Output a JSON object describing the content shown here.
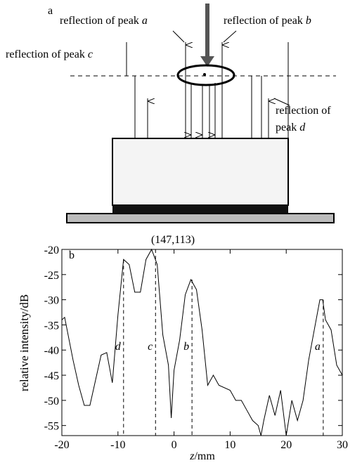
{
  "diagram": {
    "panel_label": "a",
    "labels": {
      "peak_a": {
        "text": "reflection of peak",
        "letter": "a"
      },
      "peak_b": {
        "text": "reflection of peak",
        "letter": "b"
      },
      "peak_c": {
        "text": "reflection of peak",
        "letter": "c"
      },
      "peak_d": {
        "text": "reflection of",
        "text2": "peak",
        "letter": "d"
      }
    }
  },
  "chart_data": {
    "type": "line",
    "panel_label": "b",
    "title": "(147,113)",
    "x_label": "z",
    "x_label_unit": "/mm",
    "y_label": "relative intensity/dB",
    "x": [
      -20,
      -19.5,
      -18,
      -17,
      -16,
      -15,
      -14,
      -13,
      -12,
      -11,
      -10,
      -9,
      -8,
      -7,
      -6,
      -5,
      -4,
      -3,
      -2,
      -1,
      -0.5,
      0,
      1,
      2,
      3,
      4,
      5,
      6,
      7,
      8,
      10,
      11,
      12,
      13,
      14,
      15,
      15.5,
      16,
      17,
      18,
      19,
      20,
      21,
      22,
      23,
      24,
      25,
      26,
      26.5,
      27,
      28,
      29,
      30
    ],
    "series": [
      {
        "color": "#000000",
        "values": [
          -34,
          -33.5,
          -42,
          -47,
          -51,
          -51,
          -46,
          -41,
          -40.5,
          -46.5,
          -33,
          -22,
          -23,
          -28.5,
          -28.5,
          -22,
          -20,
          -23,
          -37,
          -43,
          -53.5,
          -44,
          -38,
          -29,
          -26,
          -28,
          -36,
          -47,
          -45,
          -47,
          -48,
          -50,
          -50,
          -52,
          -54,
          -55,
          -57,
          -54,
          -49,
          -53,
          -48,
          -57,
          -50,
          -54,
          -50,
          -42,
          -36,
          -30,
          -30,
          -34,
          -36,
          -43,
          -45
        ]
      }
    ],
    "peaks": [
      {
        "x": -9,
        "y": -22,
        "label": "d"
      },
      {
        "x": -3.3,
        "y": -20,
        "label": "c"
      },
      {
        "x": 3.2,
        "y": -26,
        "label": "b"
      },
      {
        "x": 26.6,
        "y": -30,
        "label": "a"
      }
    ],
    "peak_label_y": -40,
    "xlim": [
      -20,
      30
    ],
    "ylim": [
      -57,
      -20
    ],
    "xticks": [
      -20,
      -10,
      0,
      10,
      20,
      30
    ],
    "yticks": [
      -55,
      -50,
      -45,
      -40,
      -35,
      -30,
      -25,
      -20
    ]
  }
}
